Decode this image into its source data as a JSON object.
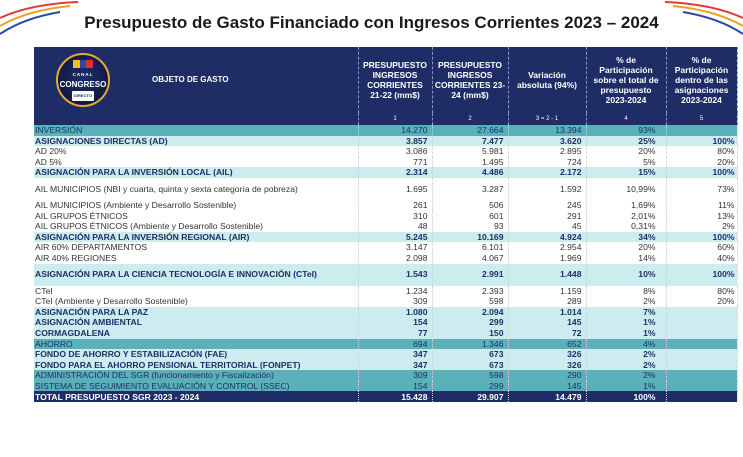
{
  "title": "Presupuesto de Gasto Financiado con Ingresos Corrientes 2023 – 2024",
  "logo": {
    "line1": "CANAL",
    "line2": "CONGRESO",
    "line3": "DIRECTO"
  },
  "colors": {
    "header_bg": "#1f2d66",
    "teal": "#5ab1ba",
    "light_teal": "#ccecef"
  },
  "header": {
    "obj": "OBJETO DE GASTO",
    "c1": "PRESUPUESTO INGRESOS CORRIENTES 21-22 (mm$)",
    "c2": "PRESUPUESTO INGRESOS CORRIENTES 23-24 (mm$)",
    "c3": "Variación absoluta (94%)",
    "c4": "% de Participación sobre el total de presupuesto 2023-2024",
    "c5": "% de Participación dentro de las asignaciones 2023-2024",
    "n1": "1",
    "n2": "2",
    "n3": "3 = 2 - 1",
    "n4": "4",
    "n5": "5"
  },
  "rows": [
    {
      "label": "INVERSIÓN",
      "v1": "14.270",
      "v2": "27.664",
      "v3": "13.394",
      "v4": "93%",
      "v5": ""
    },
    {
      "label": "ASIGNACIONES DIRECTAS (AD)",
      "v1": "3.857",
      "v2": "7.477",
      "v3": "3.620",
      "v4": "25%",
      "v5": "100%"
    },
    {
      "label": "AD 20%",
      "v1": "3.086",
      "v2": "5.981",
      "v3": "2.895",
      "v4": "20%",
      "v5": "80%"
    },
    {
      "label": "AD 5%",
      "v1": "771",
      "v2": "1.495",
      "v3": "724",
      "v4": "5%",
      "v5": "20%"
    },
    {
      "label": "ASIGNACIÓN PARA LA INVERSIÓN LOCAL (AIL)",
      "v1": "2.314",
      "v2": "4.486",
      "v3": "2.172",
      "v4": "15%",
      "v5": "100%"
    },
    {
      "label": "AIL MUNICIPIOS (NBI y cuarta, quinta y sexta categoría de pobreza)",
      "v1": "1.695",
      "v2": "3.287",
      "v3": "1.592",
      "v4": "10,99%",
      "v5": "73%"
    },
    {
      "label": "AIL MUNICIPIOS (Ambiente y Desarrollo Sostenible)",
      "v1": "261",
      "v2": "506",
      "v3": "245",
      "v4": "1,69%",
      "v5": "11%"
    },
    {
      "label": "AIL GRUPOS ÉTNICOS",
      "v1": "310",
      "v2": "601",
      "v3": "291",
      "v4": "2,01%",
      "v5": "13%"
    },
    {
      "label": "AIL GRUPOS ÉTNICOS (Ambiente y Desarrollo Sostenible)",
      "v1": "48",
      "v2": "93",
      "v3": "45",
      "v4": "0,31%",
      "v5": "2%"
    },
    {
      "label": "ASIGNACIÓN PARA LA INVERSIÓN REGIONAL (AIR)",
      "v1": "5.245",
      "v2": "10.169",
      "v3": "4.924",
      "v4": "34%",
      "v5": "100%"
    },
    {
      "label": "AIR 60% DEPARTAMENTOS",
      "v1": "3.147",
      "v2": "6.101",
      "v3": "2.954",
      "v4": "20%",
      "v5": "60%"
    },
    {
      "label": "AIR 40% REGIONES",
      "v1": "2.098",
      "v2": "4.067",
      "v3": "1.969",
      "v4": "14%",
      "v5": "40%"
    },
    {
      "label": "ASIGNACIÓN PARA LA CIENCIA TECNOLOGÍA E INNOVACIÓN (CTeI)",
      "v1": "1.543",
      "v2": "2.991",
      "v3": "1.448",
      "v4": "10%",
      "v5": "100%"
    },
    {
      "label": "CTeI",
      "v1": "1.234",
      "v2": "2.393",
      "v3": "1.159",
      "v4": "8%",
      "v5": "80%"
    },
    {
      "label": "CTeI (Ambiente y Desarrollo Sostenible)",
      "v1": "309",
      "v2": "598",
      "v3": "289",
      "v4": "2%",
      "v5": "20%"
    },
    {
      "label": "ASIGNACIÓN PARA LA PAZ",
      "v1": "1.080",
      "v2": "2.094",
      "v3": "1.014",
      "v4": "7%",
      "v5": ""
    },
    {
      "label": "ASIGNACIÓN AMBIENTAL",
      "v1": "154",
      "v2": "299",
      "v3": "145",
      "v4": "1%",
      "v5": ""
    },
    {
      "label": "CORMAGDALENA",
      "v1": "77",
      "v2": "150",
      "v3": "72",
      "v4": "1%",
      "v5": ""
    },
    {
      "label": "AHORRO",
      "v1": "694",
      "v2": "1.346",
      "v3": "652",
      "v4": "4%",
      "v5": ""
    },
    {
      "label": "FONDO DE AHORRO Y ESTABILIZACIÓN (FAE)",
      "v1": "347",
      "v2": "673",
      "v3": "326",
      "v4": "2%",
      "v5": ""
    },
    {
      "label": "FONDO PARA EL AHORRO PENSIONAL TERRITORIAL (FONPET)",
      "v1": "347",
      "v2": "673",
      "v3": "326",
      "v4": "2%",
      "v5": ""
    },
    {
      "label": "ADMINISTRACIÓN DEL SGR (funcionamiento y Fiscalización)",
      "v1": "309",
      "v2": "598",
      "v3": "290",
      "v4": "2%",
      "v5": ""
    },
    {
      "label": "SISTEMA DE SEGUIMIENTO EVALUACIÓN Y CONTROL (SSEC)",
      "v1": "154",
      "v2": "299",
      "v3": "145",
      "v4": "1%",
      "v5": ""
    },
    {
      "label": "TOTAL PRESUPUESTO SGR 2023 - 2024",
      "v1": "15.428",
      "v2": "29.907",
      "v3": "14.479",
      "v4": "100%",
      "v5": ""
    }
  ]
}
